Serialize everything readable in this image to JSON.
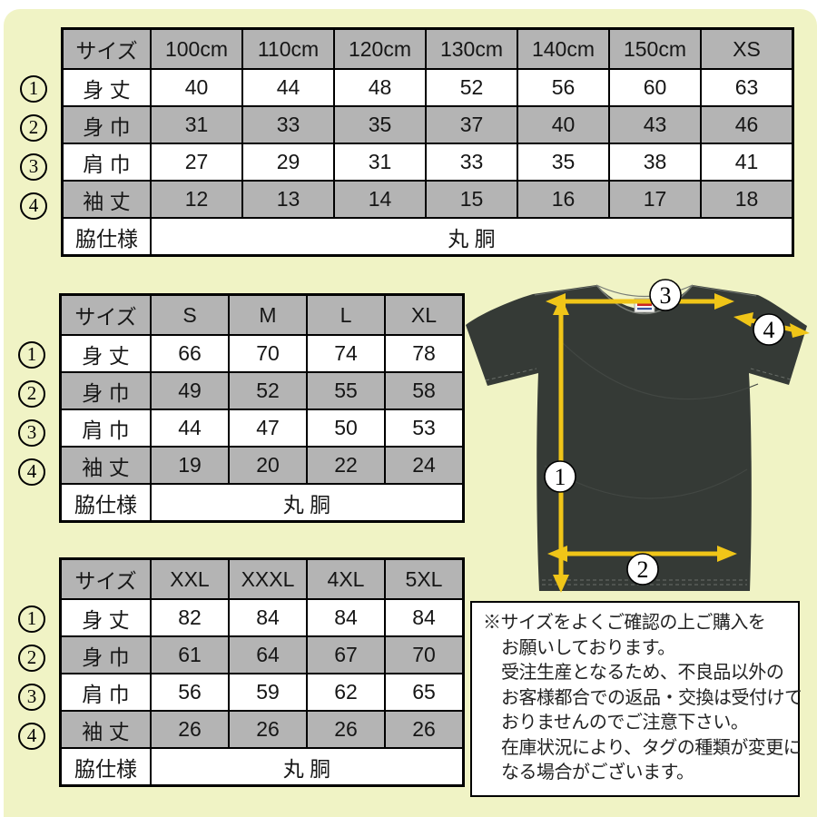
{
  "colors": {
    "page_background": "#f0f3c5",
    "table_gray": "#b4b4b4",
    "table_border": "#000000",
    "arrow_yellow": "#f0c518",
    "shirt_dark": "#353a36",
    "note_background": "#ffffff"
  },
  "tables": [
    {
      "name": "size-table-100cm-xs",
      "header": [
        "サイズ",
        "100cm",
        "110cm",
        "120cm",
        "130cm",
        "140cm",
        "150cm",
        "XS"
      ],
      "rows": [
        {
          "num": "1",
          "label": "身 丈",
          "values": [
            "40",
            "44",
            "48",
            "52",
            "56",
            "60",
            "63"
          ]
        },
        {
          "num": "2",
          "label": "身 巾",
          "values": [
            "31",
            "33",
            "35",
            "37",
            "40",
            "43",
            "46"
          ]
        },
        {
          "num": "3",
          "label": "肩 巾",
          "values": [
            "27",
            "29",
            "31",
            "33",
            "35",
            "38",
            "41"
          ]
        },
        {
          "num": "4",
          "label": "袖 丈",
          "values": [
            "12",
            "13",
            "14",
            "15",
            "16",
            "17",
            "18"
          ]
        }
      ],
      "footer": {
        "label": "脇仕様",
        "value": "丸 胴"
      }
    },
    {
      "name": "size-table-s-xl",
      "header": [
        "サイズ",
        "S",
        "M",
        "L",
        "XL"
      ],
      "rows": [
        {
          "num": "1",
          "label": "身 丈",
          "values": [
            "66",
            "70",
            "74",
            "78"
          ]
        },
        {
          "num": "2",
          "label": "身 巾",
          "values": [
            "49",
            "52",
            "55",
            "58"
          ]
        },
        {
          "num": "3",
          "label": "肩 巾",
          "values": [
            "44",
            "47",
            "50",
            "53"
          ]
        },
        {
          "num": "4",
          "label": "袖 丈",
          "values": [
            "19",
            "20",
            "22",
            "24"
          ]
        }
      ],
      "footer": {
        "label": "脇仕様",
        "value": "丸 胴"
      }
    },
    {
      "name": "size-table-xxl-5xl",
      "header": [
        "サイズ",
        "XXL",
        "XXXL",
        "4XL",
        "5XL"
      ],
      "rows": [
        {
          "num": "1",
          "label": "身 丈",
          "values": [
            "82",
            "84",
            "84",
            "84"
          ]
        },
        {
          "num": "2",
          "label": "身 巾",
          "values": [
            "61",
            "64",
            "67",
            "70"
          ]
        },
        {
          "num": "3",
          "label": "肩 巾",
          "values": [
            "56",
            "59",
            "62",
            "65"
          ]
        },
        {
          "num": "4",
          "label": "袖 丈",
          "values": [
            "26",
            "26",
            "26",
            "26"
          ]
        }
      ],
      "footer": {
        "label": "脇仕様",
        "value": "丸 胴"
      }
    }
  ],
  "diagram": {
    "markers": [
      "1",
      "2",
      "3",
      "4"
    ]
  },
  "note": {
    "lines": [
      "※サイズをよくご確認の上ご購入を",
      "お願いしております。",
      "受注生産となるため、不良品以外の",
      "お客様都合での返品・交換は受付けて",
      "おりませんのでご注意下さい。",
      "在庫状況により、タグの種類が変更に",
      "なる場合がございます。"
    ]
  }
}
